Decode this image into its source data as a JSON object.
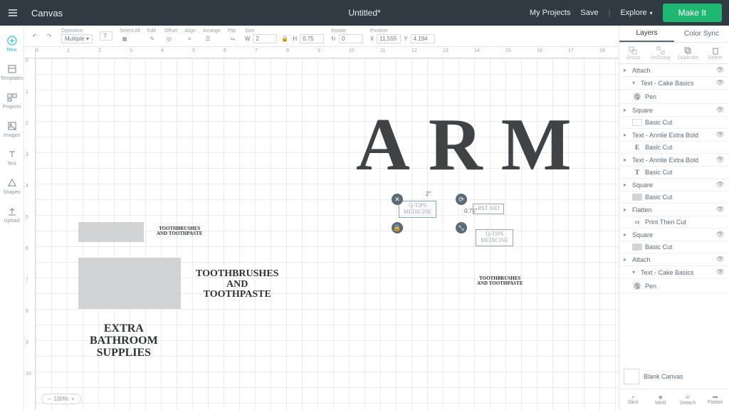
{
  "topbar": {
    "title": "Canvas",
    "document": "Untitled*",
    "myProjects": "My Projects",
    "save": "Save",
    "explore": "Explore",
    "makeIt": "Make It"
  },
  "leftTools": {
    "new": "New",
    "templates": "Templates",
    "projects": "Projects",
    "images": "Images",
    "text": "Text",
    "shapes": "Shapes",
    "upload": "Upload"
  },
  "optbar": {
    "operation": "Operation",
    "operationValue": "Multiple",
    "selectAll": "Select All",
    "edit": "Edit",
    "offset": "Offset",
    "align": "Align",
    "arrange": "Arrange",
    "flip": "Flip",
    "size": "Size",
    "w": "W",
    "wVal": "2",
    "h": "H",
    "hVal": "0.75",
    "rotate": "Rotate",
    "rotateVal": "0",
    "position": "Position",
    "x": "X",
    "xVal": "11.555",
    "y": "Y",
    "yVal": "4.194"
  },
  "canvas": {
    "arm": "ARM",
    "toothbrushesSm1": "TOOTHBRUSHES\nAND TOOTHPASTE",
    "toothbrushesMd": "TOOTHBRUSHES\nAND\nTOOTHPASTE",
    "toothbrushesSm2": "TOOTHBRUSHES\nAND TOOTHPASTE",
    "extraBath": "EXTRA\nBATHROOM\nSUPPLIES",
    "qtips1": "Q-TIPS\nMEDICINE",
    "firstAid": "RST AID",
    "qtips2": "Q-TIPS\nMEDICINE",
    "dimW": "2\"",
    "dimH": "0.75\"",
    "zoom": "100%"
  },
  "rulerH": [
    0,
    1,
    2,
    3,
    4,
    5,
    6,
    7,
    8,
    9,
    10,
    11,
    12,
    13,
    14,
    15,
    16,
    17,
    18
  ],
  "rulerV": [
    0,
    1,
    2,
    3,
    4,
    5,
    6,
    7,
    8,
    9,
    10
  ],
  "layers": {
    "tabLayers": "Layers",
    "tabColorSync": "Color Sync",
    "actions": {
      "group": "Group",
      "ungroup": "UnGroup",
      "duplicate": "Duplicate",
      "delete": "Delete"
    },
    "items": [
      {
        "type": "group",
        "label": "Attach"
      },
      {
        "type": "sub",
        "label": "Text - Cake Basics"
      },
      {
        "type": "sub2",
        "label": "Pen",
        "icon": "pen"
      },
      {
        "type": "group",
        "label": "Square"
      },
      {
        "type": "sub2",
        "label": "Basic Cut",
        "icon": "swatch",
        "color": "#ffffff"
      },
      {
        "type": "group",
        "label": "Text - Annlie Extra Bold"
      },
      {
        "type": "sub2",
        "label": "Basic Cut",
        "icon": "glyph",
        "glyph": "E"
      },
      {
        "type": "group",
        "label": "Text - Annlie Extra Bold"
      },
      {
        "type": "sub2",
        "label": "Basic Cut",
        "icon": "glyph",
        "glyph": "T"
      },
      {
        "type": "group",
        "label": "Square"
      },
      {
        "type": "sub2",
        "label": "Basic Cut",
        "icon": "swatch",
        "color": "#d2d3d4"
      },
      {
        "type": "group",
        "label": "Flatten"
      },
      {
        "type": "sub2",
        "label": "Print Then Cut",
        "icon": "ptc"
      },
      {
        "type": "group",
        "label": "Square"
      },
      {
        "type": "sub2",
        "label": "Basic Cut",
        "icon": "swatch",
        "color": "#d2d3d4"
      },
      {
        "type": "group",
        "label": "Attach"
      },
      {
        "type": "sub",
        "label": "Text - Cake Basics"
      },
      {
        "type": "sub2",
        "label": "Pen",
        "icon": "pen"
      }
    ],
    "blankCanvas": "Blank Canvas",
    "bottom": {
      "slice": "Slice",
      "weld": "Weld",
      "detach": "Detach",
      "flatten": "Flatten"
    }
  },
  "colors": {
    "topbar": "#2f3a42",
    "accent": "#1fb872",
    "teal": "#1fc3d8",
    "grid": "#e9ebed",
    "text": "#3f4346"
  }
}
